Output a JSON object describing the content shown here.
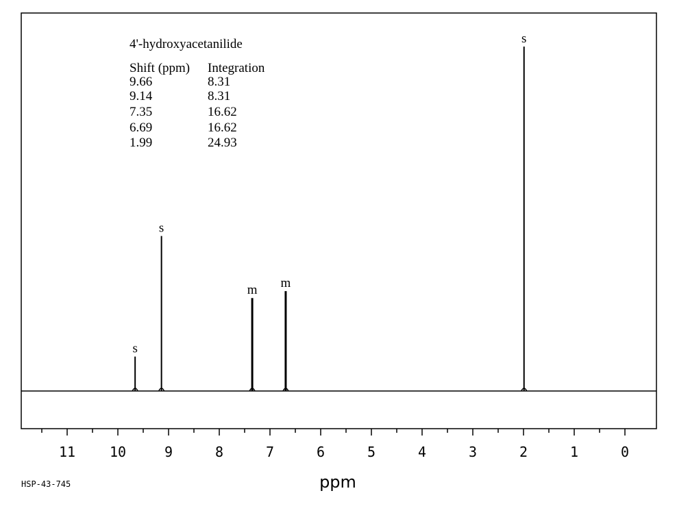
{
  "chart_data": {
    "type": "line",
    "title": "4'-hydroxyacetanilide",
    "xlabel": "ppm",
    "ylabel": "",
    "xlim": [
      12,
      -0.6
    ],
    "x_reversed": true,
    "grid": false,
    "legend": "none",
    "x_ticks": [
      11,
      10,
      9,
      8,
      7,
      6,
      5,
      4,
      3,
      2,
      1,
      0
    ],
    "table": {
      "headers": [
        "Shift (ppm)",
        "Integration"
      ],
      "rows": [
        [
          "9.66",
          "8.31"
        ],
        [
          "9.14",
          "8.31"
        ],
        [
          "7.35",
          "16.62"
        ],
        [
          "6.69",
          "16.62"
        ],
        [
          "1.99",
          "24.93"
        ]
      ]
    },
    "peaks": [
      {
        "shift": 9.66,
        "height": 0.1,
        "multiplicity": "s"
      },
      {
        "shift": 9.14,
        "height": 0.45,
        "multiplicity": "s"
      },
      {
        "shift": 7.35,
        "height": 0.27,
        "multiplicity": "m"
      },
      {
        "shift": 6.69,
        "height": 0.29,
        "multiplicity": "m"
      },
      {
        "shift": 1.99,
        "height": 1.0,
        "multiplicity": "s"
      }
    ],
    "code": "HSP-43-745"
  }
}
